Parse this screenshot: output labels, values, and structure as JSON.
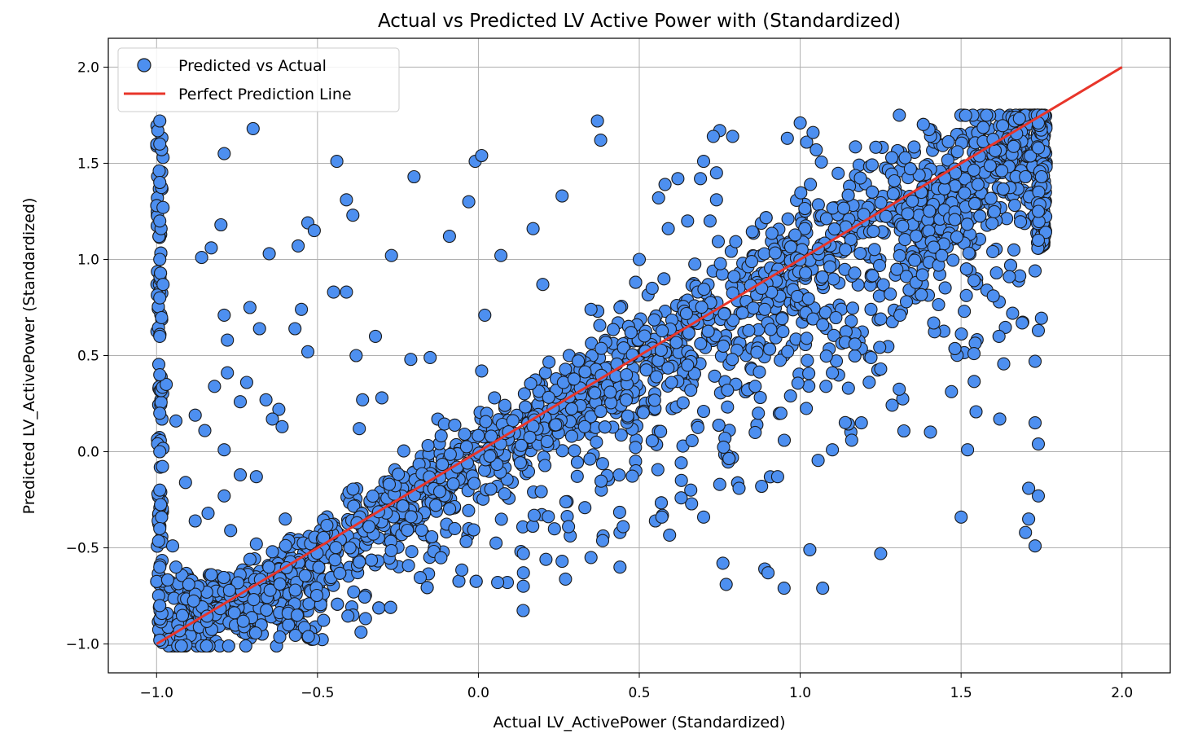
{
  "chart_data": {
    "type": "scatter",
    "title": "Actual vs Predicted LV Active Power with (Standardized)",
    "xlabel": "Actual LV_ActivePower (Standardized)",
    "ylabel": "Predicted LV_ActivePower (Standardized)",
    "xlim": [
      -1.15,
      2.15
    ],
    "ylim": [
      -1.15,
      2.15
    ],
    "xticks": [
      -1.0,
      -0.5,
      0.0,
      0.5,
      1.0,
      1.5,
      2.0
    ],
    "xtick_labels": [
      "−1.0",
      "−0.5",
      "0.0",
      "0.5",
      "1.0",
      "1.5",
      "2.0"
    ],
    "yticks": [
      -1.0,
      -0.5,
      0.0,
      0.5,
      1.0,
      1.5,
      2.0
    ],
    "ytick_labels": [
      "−1.0",
      "−0.5",
      "0.0",
      "0.5",
      "1.0",
      "1.5",
      "2.0"
    ],
    "grid": true,
    "legend_position": "top-left",
    "series": [
      {
        "name": "Predicted vs Actual",
        "kind": "scatter",
        "color": "#4d8ff0",
        "edge_color": "#1a1a1a",
        "approx_points": 2600,
        "sample_points": [
          [
            -0.79,
            1.55
          ],
          [
            -0.7,
            1.68
          ],
          [
            -0.44,
            1.51
          ],
          [
            -0.41,
            1.31
          ],
          [
            -0.39,
            1.23
          ],
          [
            -0.2,
            1.43
          ],
          [
            -0.01,
            1.51
          ],
          [
            0.01,
            1.54
          ],
          [
            -0.03,
            1.3
          ],
          [
            -0.09,
            1.12
          ],
          [
            0.37,
            1.72
          ],
          [
            0.38,
            1.62
          ],
          [
            0.26,
            1.33
          ],
          [
            0.07,
            1.02
          ],
          [
            0.17,
            1.16
          ],
          [
            0.2,
            0.87
          ],
          [
            0.02,
            0.71
          ],
          [
            -0.8,
            1.18
          ],
          [
            -0.86,
            1.01
          ],
          [
            -0.83,
            1.06
          ],
          [
            -0.65,
            1.03
          ],
          [
            -0.56,
            1.07
          ],
          [
            -0.53,
            1.19
          ],
          [
            -0.51,
            1.15
          ],
          [
            -0.45,
            0.83
          ],
          [
            -0.41,
            0.83
          ],
          [
            -0.27,
            1.02
          ],
          [
            -0.32,
            0.6
          ],
          [
            -0.38,
            0.5
          ],
          [
            -0.21,
            0.48
          ],
          [
            -0.15,
            0.49
          ],
          [
            -0.36,
            0.27
          ],
          [
            -0.3,
            0.28
          ],
          [
            -0.37,
            0.12
          ],
          [
            -0.53,
            0.52
          ],
          [
            -0.55,
            0.74
          ],
          [
            -0.57,
            0.64
          ],
          [
            -0.68,
            0.64
          ],
          [
            -0.71,
            0.75
          ],
          [
            -0.79,
            0.71
          ],
          [
            -0.78,
            0.58
          ],
          [
            -0.98,
            1.27
          ],
          [
            -0.98,
            0.87
          ],
          [
            -0.97,
            0.35
          ],
          [
            -0.94,
            0.16
          ],
          [
            -0.88,
            0.19
          ],
          [
            -0.85,
            0.11
          ],
          [
            -0.82,
            0.34
          ],
          [
            -0.78,
            0.41
          ],
          [
            -0.74,
            0.26
          ],
          [
            -0.66,
            0.27
          ],
          [
            -0.62,
            0.22
          ],
          [
            -0.61,
            0.13
          ],
          [
            -0.64,
            0.17
          ],
          [
            -0.72,
            0.36
          ],
          [
            -0.79,
            0.01
          ],
          [
            -0.74,
            -0.12
          ],
          [
            -0.69,
            -0.13
          ],
          [
            -0.84,
            -0.32
          ],
          [
            -0.79,
            -0.23
          ],
          [
            -0.91,
            -0.16
          ],
          [
            -0.88,
            -0.36
          ],
          [
            -0.77,
            -0.41
          ],
          [
            -0.71,
            -0.56
          ],
          [
            -0.69,
            -0.48
          ],
          [
            -0.64,
            -0.52
          ],
          [
            -0.6,
            -0.35
          ],
          [
            -0.95,
            -0.49
          ],
          [
            -0.94,
            -0.6
          ],
          [
            -0.9,
            -0.69
          ],
          [
            -0.83,
            -0.64
          ],
          [
            1.02,
            1.61
          ],
          [
            1.04,
            1.66
          ],
          [
            0.96,
            1.63
          ],
          [
            1.0,
            1.71
          ],
          [
            1.05,
            1.57
          ],
          [
            0.75,
            1.67
          ],
          [
            0.73,
            1.64
          ],
          [
            0.79,
            1.64
          ],
          [
            0.74,
            1.45
          ],
          [
            0.69,
            1.42
          ],
          [
            0.7,
            1.51
          ],
          [
            0.62,
            1.42
          ],
          [
            0.56,
            1.32
          ],
          [
            0.59,
            1.16
          ],
          [
            0.65,
            1.2
          ],
          [
            0.72,
            1.2
          ],
          [
            0.74,
            1.31
          ],
          [
            0.58,
            1.39
          ],
          [
            0.5,
            1.0
          ],
          [
            0.54,
            0.85
          ],
          [
            0.35,
            0.74
          ],
          [
            0.44,
            0.75
          ],
          [
            0.01,
            0.42
          ],
          [
            0.05,
            0.28
          ],
          [
            0.28,
            -0.39
          ],
          [
            0.26,
            -0.57
          ],
          [
            0.21,
            -0.56
          ],
          [
            0.14,
            -0.53
          ],
          [
            0.09,
            -0.68
          ],
          [
            0.06,
            -0.68
          ],
          [
            0.14,
            -0.63
          ],
          [
            0.35,
            -0.55
          ],
          [
            0.44,
            -0.6
          ],
          [
            0.44,
            -0.42
          ],
          [
            0.45,
            -0.39
          ],
          [
            0.55,
            -0.36
          ],
          [
            0.57,
            -0.34
          ],
          [
            0.63,
            -0.24
          ],
          [
            0.66,
            -0.2
          ],
          [
            0.7,
            -0.34
          ],
          [
            0.75,
            -0.17
          ],
          [
            0.81,
            -0.19
          ],
          [
            0.88,
            -0.18
          ],
          [
            0.93,
            -0.13
          ],
          [
            0.76,
            -0.58
          ],
          [
            0.77,
            -0.69
          ],
          [
            0.89,
            -0.61
          ],
          [
            0.9,
            -0.63
          ],
          [
            0.95,
            -0.71
          ],
          [
            1.03,
            -0.51
          ],
          [
            1.07,
            -0.71
          ],
          [
            1.25,
            -0.53
          ],
          [
            1.5,
            -0.34
          ],
          [
            1.52,
            0.01
          ],
          [
            1.54,
            0.51
          ],
          [
            1.51,
            0.73
          ],
          [
            1.54,
            0.89
          ],
          [
            1.58,
            0.84
          ],
          [
            1.6,
            0.81
          ],
          [
            1.61,
            0.93
          ],
          [
            1.65,
            0.91
          ],
          [
            1.69,
            0.67
          ],
          [
            1.66,
            0.72
          ],
          [
            1.62,
            0.17
          ],
          [
            1.71,
            -0.35
          ],
          [
            1.7,
            -0.42
          ],
          [
            1.71,
            -0.19
          ],
          [
            1.74,
            -0.23
          ],
          [
            1.73,
            -0.49
          ],
          [
            1.73,
            0.15
          ],
          [
            1.74,
            0.04
          ],
          [
            1.73,
            0.47
          ],
          [
            1.74,
            0.63
          ],
          [
            1.73,
            0.94
          ],
          [
            1.74,
            1.1
          ],
          [
            1.74,
            1.25
          ],
          [
            1.75,
            1.43
          ],
          [
            1.74,
            1.58
          ],
          [
            1.74,
            1.71
          ],
          [
            1.08,
            0.34
          ],
          [
            1.1,
            0.01
          ],
          [
            1.1,
            0.41
          ],
          [
            1.15,
            0.33
          ],
          [
            1.19,
            0.15
          ],
          [
            1.16,
            0.06
          ],
          [
            1.25,
            0.43
          ],
          [
            1.22,
            0.49
          ],
          [
            1.02,
            0.59
          ],
          [
            1.04,
            0.69
          ],
          [
            1.07,
            0.66
          ],
          [
            1.14,
            0.57
          ],
          [
            1.17,
            0.56
          ],
          [
            1.22,
            0.74
          ],
          [
            1.25,
            0.69
          ],
          [
            1.28,
            0.82
          ],
          [
            1.31,
            0.71
          ],
          [
            1.33,
            0.78
          ],
          [
            1.36,
            0.88
          ],
          [
            1.38,
            0.92
          ],
          [
            1.43,
            0.97
          ],
          [
            1.44,
            1.02
          ],
          [
            0.84,
            0.63
          ],
          [
            0.89,
            0.74
          ],
          [
            0.88,
            0.85
          ],
          [
            0.86,
            0.34
          ],
          [
            0.87,
            0.2
          ],
          [
            0.94,
            0.2
          ],
          [
            0.97,
            0.29
          ],
          [
            0.86,
            0.1
          ],
          [
            0.7,
            0.21
          ],
          [
            0.66,
            0.32
          ],
          [
            0.6,
            0.36
          ],
          [
            0.65,
            0.45
          ],
          [
            0.46,
            0.4
          ],
          [
            0.41,
            0.31
          ],
          [
            0.38,
            0.21
          ],
          [
            0.33,
            0.13
          ],
          [
            0.29,
            0.08
          ],
          [
            0.24,
            0.14
          ],
          [
            -0.99,
            1.72
          ],
          [
            -0.99,
            1.6
          ],
          [
            -0.99,
            1.4
          ],
          [
            -0.99,
            1.2
          ],
          [
            -0.99,
            1.0
          ],
          [
            -0.99,
            0.8
          ],
          [
            -0.99,
            0.6
          ],
          [
            -0.99,
            0.4
          ],
          [
            -0.99,
            0.2
          ],
          [
            -0.99,
            0.0
          ],
          [
            -0.99,
            -0.2
          ],
          [
            -0.99,
            -0.4
          ],
          [
            -0.99,
            -0.6
          ],
          [
            -0.99,
            -0.8
          ],
          [
            -0.99,
            -0.98
          ]
        ]
      },
      {
        "name": "Perfect Prediction Line",
        "kind": "line",
        "color": "#e8352a",
        "x": [
          -1.0,
          2.0
        ],
        "y": [
          -1.0,
          2.0
        ]
      }
    ]
  }
}
